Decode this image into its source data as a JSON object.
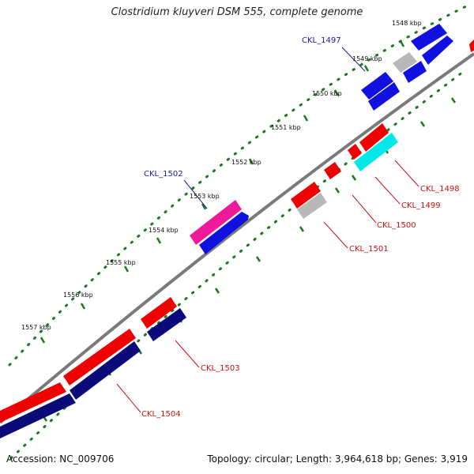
{
  "title": "Clostridium kluyveri DSM 555, complete genome",
  "footer": {
    "accession": "Accession: NC_009706",
    "summary": "Topology: circular; Length: 3,964,618 bp; Genes: 3,919"
  },
  "colors": {
    "backbone": "#808080",
    "tick_dots": "#1a7a1a",
    "forward_label": "#1a1aa0",
    "reverse_label": "#cc1111",
    "red": "#ee0000",
    "blue": "#1010e0",
    "navy": "#0a0a78",
    "gray": "#b8b8b8",
    "cyan": "#00e8e8",
    "magenta": "#ee1a9a"
  },
  "scale_labels": [
    "1548 kbp",
    "1549 kbp",
    "1550 kbp",
    "1551 kbp",
    "1552 kbp",
    "1553 kbp",
    "1554 kbp",
    "1555 kbp",
    "1556 kbp",
    "1557 kbp"
  ],
  "gene_labels": [
    {
      "id": "ckl1497",
      "text": "CKL_1497",
      "strand": "forward"
    },
    {
      "id": "ckl1502",
      "text": "CKL_1502",
      "strand": "forward"
    },
    {
      "id": "ckl1498",
      "text": "CKL_1498",
      "strand": "reverse"
    },
    {
      "id": "ckl1499",
      "text": "CKL_1499",
      "strand": "reverse"
    },
    {
      "id": "ckl1500",
      "text": "CKL_1500",
      "strand": "reverse"
    },
    {
      "id": "ckl1501",
      "text": "CKL_1501",
      "strand": "reverse"
    },
    {
      "id": "ckl1503",
      "text": "CKL_1503",
      "strand": "reverse"
    },
    {
      "id": "ckl1504",
      "text": "CKL_1504",
      "strand": "reverse"
    }
  ]
}
